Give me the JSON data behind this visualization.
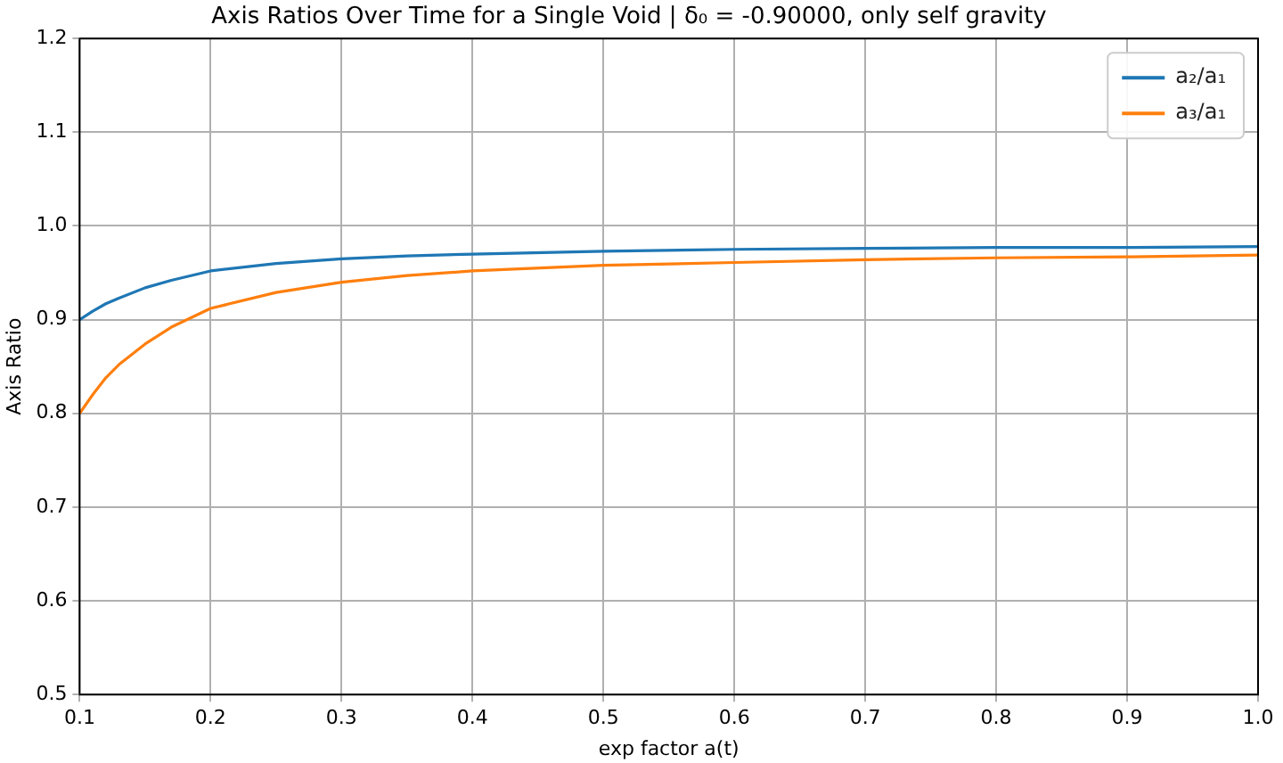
{
  "chart_data": {
    "type": "line",
    "title": "Axis Ratios Over Time for a Single Void | δ₀ = -0.90000, only self gravity",
    "xlabel": "exp factor a(t)",
    "ylabel": "Axis Ratio",
    "x": [
      0.1,
      0.11,
      0.12,
      0.13,
      0.15,
      0.17,
      0.2,
      0.25,
      0.3,
      0.35,
      0.4,
      0.5,
      0.6,
      0.7,
      0.8,
      0.9,
      1.0
    ],
    "series": [
      {
        "name": "a₂/a₁",
        "color": "#1f77b4",
        "values": [
          0.9,
          0.909,
          0.917,
          0.923,
          0.934,
          0.942,
          0.952,
          0.96,
          0.965,
          0.968,
          0.97,
          0.973,
          0.975,
          0.976,
          0.977,
          0.977,
          0.978
        ]
      },
      {
        "name": "a₃/a₁",
        "color": "#ff7f0e",
        "values": [
          0.8,
          0.82,
          0.838,
          0.852,
          0.874,
          0.892,
          0.912,
          0.929,
          0.94,
          0.947,
          0.952,
          0.958,
          0.961,
          0.964,
          0.966,
          0.967,
          0.969
        ]
      }
    ],
    "xlim": [
      0.1,
      1.0
    ],
    "xticks": [
      {
        "value": 0.1,
        "label": "0.1"
      },
      {
        "value": 0.2,
        "label": "0.2"
      },
      {
        "value": 0.3,
        "label": "0.3"
      },
      {
        "value": 0.4,
        "label": "0.4"
      },
      {
        "value": 0.5,
        "label": "0.5"
      },
      {
        "value": 0.6,
        "label": "0.6"
      },
      {
        "value": 0.7,
        "label": "0.7"
      },
      {
        "value": 0.8,
        "label": "0.8"
      },
      {
        "value": 0.9,
        "label": "0.9"
      },
      {
        "value": 1.0,
        "label": "1.0"
      }
    ],
    "ylim": [
      0.5,
      1.2
    ],
    "yticks": [
      {
        "value": 0.5,
        "label": "0.5"
      },
      {
        "value": 0.6,
        "label": "0.6"
      },
      {
        "value": 0.7,
        "label": "0.7"
      },
      {
        "value": 0.8,
        "label": "0.8"
      },
      {
        "value": 0.9,
        "label": "0.9"
      },
      {
        "value": 1.0,
        "label": "1.0"
      },
      {
        "value": 1.1,
        "label": "1.1"
      },
      {
        "value": 1.2,
        "label": "1.2"
      }
    ],
    "grid": true,
    "legend": "top right",
    "marker": "none",
    "line_style": "solid"
  }
}
